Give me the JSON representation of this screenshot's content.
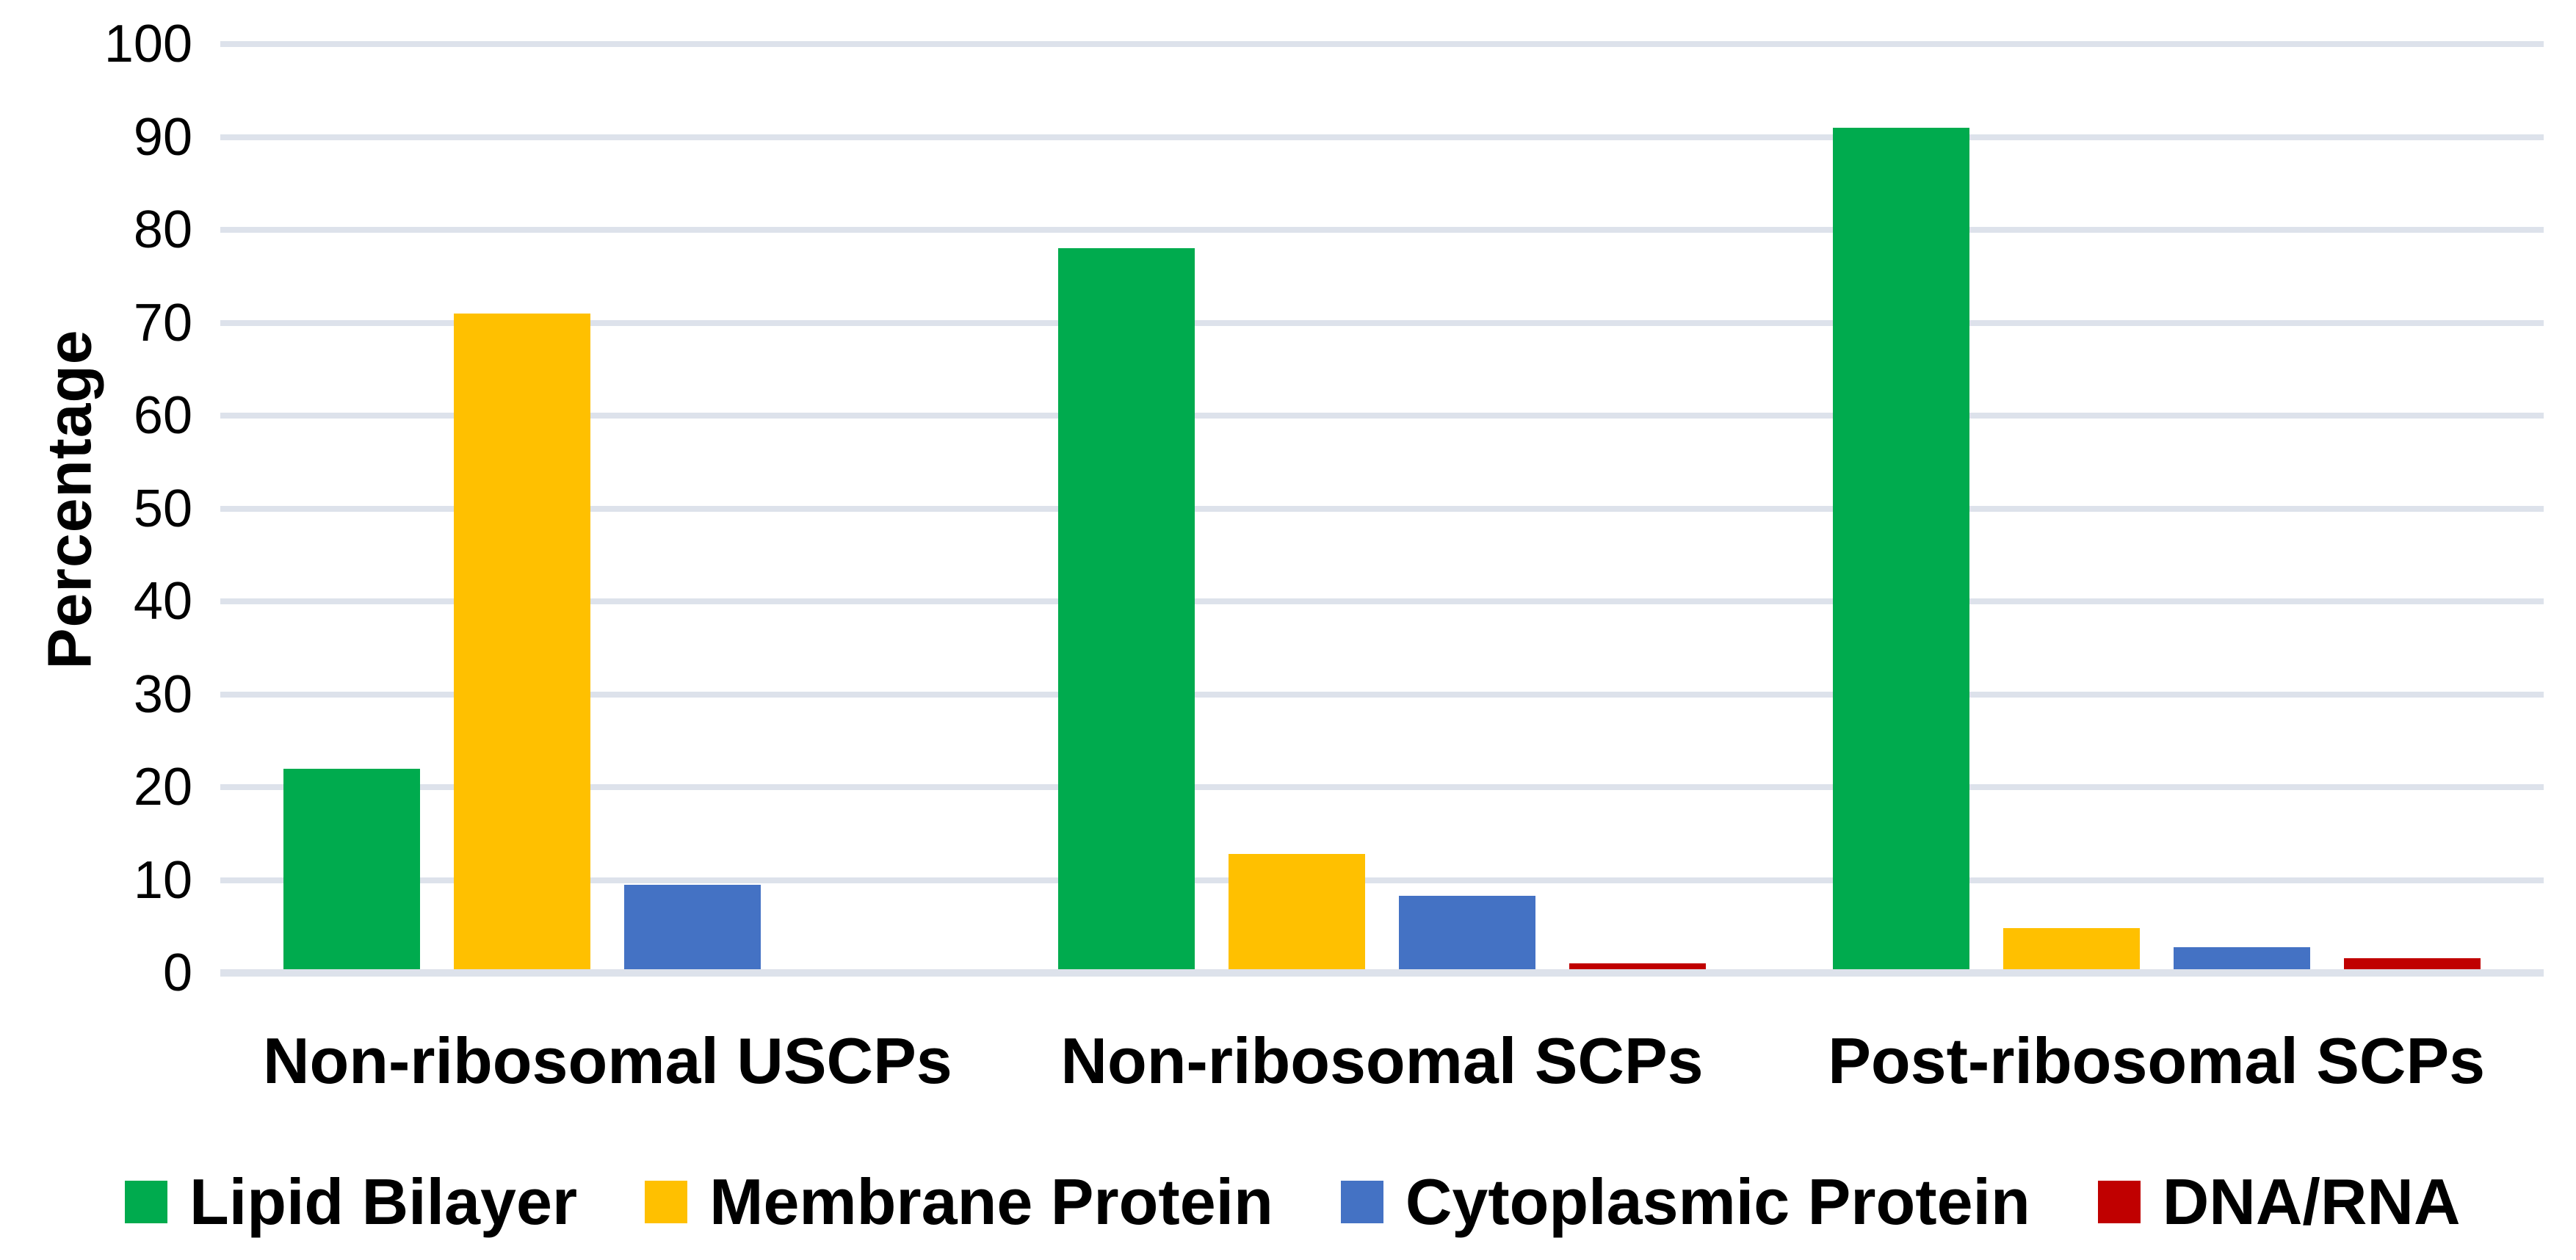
{
  "chart_data": {
    "type": "bar",
    "title": "",
    "ylabel": "Percentage",
    "ylim": [
      0,
      100
    ],
    "ytick_step": 10,
    "grid": "horizontal",
    "legend_position": "bottom",
    "background_color": "#FFFFFF",
    "gridline_color": "#DDE2EB",
    "text_color": "#000000",
    "categories": [
      "Non-ribosomal USCPs",
      "Non-ribosomal SCPs",
      "Post-ribosomal SCPs"
    ],
    "series": [
      {
        "name": "Lipid Bilayer",
        "color": "#00AB4E",
        "values": [
          22,
          78,
          91
        ]
      },
      {
        "name": "Membrane Protein",
        "color": "#FFC000",
        "values": [
          71,
          12.8,
          4.8
        ]
      },
      {
        "name": "Cytoplasmic Protein",
        "color": "#4472C4",
        "values": [
          9.5,
          8.3,
          2.8
        ]
      },
      {
        "name": "DNA/RNA",
        "color": "#C00000",
        "values": [
          0,
          1,
          1.6
        ]
      }
    ]
  }
}
